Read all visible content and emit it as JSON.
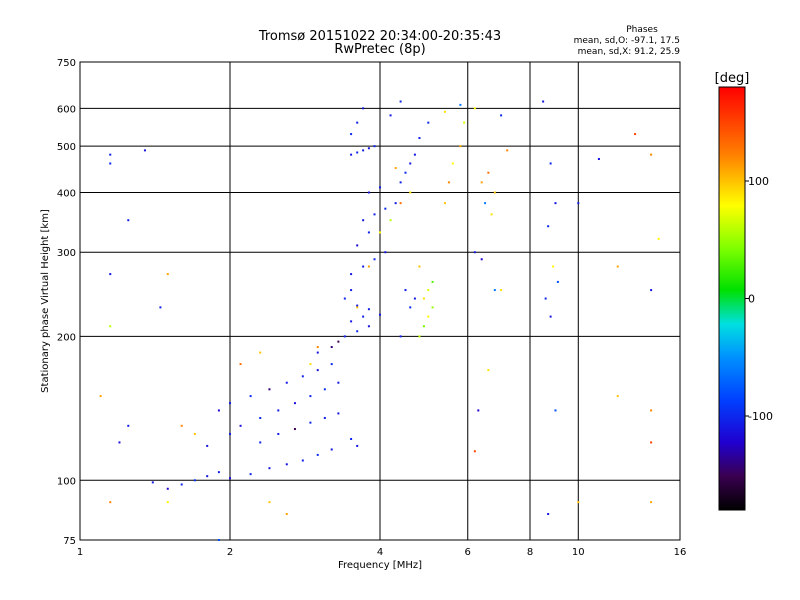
{
  "chart_data": {
    "type": "scatter",
    "title": "Tromsø 20151022 20:34:00-20:35:43",
    "subtitle": "RwPretec (8p)",
    "xlabel": "Frequency [MHz]",
    "ylabel": "Stationary phase Virtual Height [km]",
    "xscale": "log",
    "yscale": "log",
    "xlim": [
      1,
      16
    ],
    "ylim": [
      75,
      750
    ],
    "x_ticks": [
      1,
      2,
      4,
      6,
      8,
      10,
      16
    ],
    "x_tick_labels": [
      "1",
      "2",
      "4",
      "6",
      "8",
      "10",
      "16"
    ],
    "y_ticks": [
      75,
      100,
      200,
      300,
      400,
      500,
      600,
      750
    ],
    "y_tick_labels": [
      "75",
      "100",
      "200",
      "300",
      "400",
      "500",
      "600",
      "750"
    ],
    "grid": true,
    "phases": {
      "heading": "Phases",
      "line_o": "mean, sd,O:  -97.1, 17.5",
      "line_x": "mean, sd,X:  91.2, 25.9"
    },
    "colorbar": {
      "label": "[deg]",
      "range": [
        -180,
        180
      ],
      "ticks": [
        100,
        0,
        -100
      ],
      "tick_labels": [
        "100",
        "0",
        "-100"
      ]
    },
    "series": [
      {
        "points": [
          [
            1.8,
            102,
            -110
          ],
          [
            1.9,
            104,
            -105
          ],
          [
            2.0,
            101,
            -115
          ],
          [
            2.2,
            103,
            -100
          ],
          [
            2.4,
            106,
            -108
          ],
          [
            2.6,
            108,
            -112
          ],
          [
            2.8,
            110,
            -104
          ],
          [
            3.0,
            113,
            -98
          ],
          [
            3.2,
            116,
            -110
          ],
          [
            1.6,
            98,
            -102
          ],
          [
            1.7,
            100,
            -95
          ],
          [
            1.5,
            96,
            -120
          ],
          [
            1.4,
            99,
            -108
          ],
          [
            1.8,
            118,
            -110
          ],
          [
            2.0,
            125,
            -105
          ],
          [
            2.1,
            130,
            -112
          ],
          [
            2.3,
            135,
            -100
          ],
          [
            2.5,
            140,
            -108
          ],
          [
            2.7,
            145,
            -115
          ],
          [
            2.9,
            150,
            -102
          ],
          [
            3.1,
            155,
            -96
          ],
          [
            3.3,
            160,
            -110
          ],
          [
            1.9,
            140,
            -118
          ],
          [
            2.0,
            145,
            -105
          ],
          [
            2.2,
            150,
            -100
          ],
          [
            2.4,
            155,
            -140
          ],
          [
            2.6,
            160,
            -108
          ],
          [
            2.8,
            165,
            -104
          ],
          [
            3.0,
            170,
            -112
          ],
          [
            3.2,
            175,
            -100
          ],
          [
            2.3,
            120,
            -102
          ],
          [
            2.5,
            125,
            -106
          ],
          [
            2.7,
            128,
            -150
          ],
          [
            2.9,
            132,
            -100
          ],
          [
            3.1,
            135,
            -104
          ],
          [
            3.3,
            138,
            -108
          ],
          [
            3.5,
            122,
            -100
          ],
          [
            3.6,
            118,
            -110
          ],
          [
            3.0,
            185,
            -110
          ],
          [
            3.2,
            190,
            -140
          ],
          [
            3.3,
            195,
            -150
          ],
          [
            3.4,
            200,
            -105
          ],
          [
            3.6,
            205,
            -100
          ],
          [
            3.8,
            210,
            -112
          ],
          [
            3.5,
            215,
            -108
          ],
          [
            3.7,
            220,
            -104
          ],
          [
            3.4,
            240,
            -100
          ],
          [
            3.6,
            232,
            -110
          ],
          [
            3.8,
            228,
            -105
          ],
          [
            4.0,
            222,
            -108
          ],
          [
            3.5,
            250,
            -104
          ],
          [
            3.5,
            270,
            -110
          ],
          [
            3.7,
            280,
            -105
          ],
          [
            3.9,
            290,
            -100
          ],
          [
            4.1,
            300,
            -108
          ],
          [
            3.6,
            310,
            -115
          ],
          [
            3.8,
            330,
            -102
          ],
          [
            3.7,
            350,
            -110
          ],
          [
            3.9,
            360,
            -104
          ],
          [
            4.1,
            370,
            -100
          ],
          [
            4.3,
            380,
            -108
          ],
          [
            3.8,
            400,
            -112
          ],
          [
            4.0,
            410,
            -106
          ],
          [
            3.5,
            480,
            -108
          ],
          [
            3.6,
            485,
            -100
          ],
          [
            3.7,
            490,
            -105
          ],
          [
            3.8,
            495,
            -110
          ],
          [
            3.9,
            500,
            -102
          ],
          [
            4.4,
            420,
            -104
          ],
          [
            4.5,
            440,
            -100
          ],
          [
            4.6,
            460,
            -108
          ],
          [
            4.7,
            480,
            -112
          ],
          [
            4.8,
            520,
            -104
          ],
          [
            5.0,
            560,
            -100
          ],
          [
            4.4,
            200,
            -104
          ],
          [
            4.6,
            230,
            -100
          ],
          [
            4.7,
            240,
            -108
          ],
          [
            4.5,
            250,
            -104
          ],
          [
            4.8,
            200,
            60
          ],
          [
            4.9,
            210,
            40
          ],
          [
            5.0,
            220,
            80
          ],
          [
            5.1,
            230,
            50
          ],
          [
            4.9,
            240,
            90
          ],
          [
            5.0,
            250,
            70
          ],
          [
            5.1,
            260,
            30
          ],
          [
            4.8,
            280,
            100
          ],
          [
            5.4,
            380,
            100
          ],
          [
            5.5,
            420,
            120
          ],
          [
            5.6,
            460,
            80
          ],
          [
            5.8,
            500,
            110
          ],
          [
            5.9,
            560,
            70
          ],
          [
            6.4,
            420,
            110
          ],
          [
            6.6,
            440,
            130
          ],
          [
            6.8,
            400,
            100
          ],
          [
            6.5,
            380,
            -60
          ],
          [
            6.7,
            360,
            90
          ],
          [
            6.2,
            300,
            -110
          ],
          [
            6.4,
            290,
            -120
          ],
          [
            6.8,
            250,
            -60
          ],
          [
            7.0,
            250,
            90
          ],
          [
            8.5,
            620,
            -110
          ],
          [
            8.8,
            460,
            -100
          ],
          [
            9.0,
            380,
            -110
          ],
          [
            8.7,
            340,
            -100
          ],
          [
            8.9,
            280,
            80
          ],
          [
            9.1,
            260,
            -80
          ],
          [
            8.6,
            240,
            -100
          ],
          [
            8.8,
            220,
            -110
          ],
          [
            10.0,
            380,
            -104
          ],
          [
            11.0,
            470,
            -112
          ],
          [
            12.0,
            280,
            110
          ],
          [
            13.0,
            530,
            150
          ],
          [
            14.0,
            480,
            120
          ],
          [
            14.5,
            320,
            80
          ],
          [
            14.0,
            250,
            -110
          ],
          [
            1.15,
            480,
            -104
          ],
          [
            1.15,
            460,
            -100
          ],
          [
            1.35,
            490,
            -110
          ],
          [
            1.25,
            350,
            -104
          ],
          [
            1.15,
            270,
            -108
          ],
          [
            1.5,
            270,
            110
          ],
          [
            1.45,
            230,
            -104
          ],
          [
            1.15,
            210,
            60
          ],
          [
            1.1,
            150,
            110
          ],
          [
            1.2,
            120,
            -112
          ],
          [
            1.25,
            130,
            -104
          ],
          [
            1.15,
            90,
            120
          ],
          [
            7.0,
            580,
            -100
          ],
          [
            6.2,
            600,
            80
          ],
          [
            5.8,
            610,
            -60
          ],
          [
            5.4,
            590,
            90
          ],
          [
            7.2,
            490,
            120
          ],
          [
            6.6,
            170,
            90
          ],
          [
            6.3,
            140,
            -120
          ],
          [
            6.2,
            115,
            150
          ],
          [
            8.7,
            85,
            -110
          ],
          [
            10.0,
            90,
            100
          ],
          [
            14.0,
            90,
            110
          ],
          [
            14.0,
            120,
            150
          ],
          [
            14.0,
            140,
            120
          ],
          [
            9.0,
            140,
            -80
          ],
          [
            12.0,
            150,
            100
          ],
          [
            3.0,
            190,
            120
          ],
          [
            2.9,
            175,
            90
          ],
          [
            3.6,
            230,
            100
          ],
          [
            3.8,
            280,
            110
          ],
          [
            4.0,
            330,
            80
          ],
          [
            4.2,
            350,
            60
          ],
          [
            4.4,
            380,
            130
          ],
          [
            4.6,
            400,
            90
          ],
          [
            4.3,
            450,
            110
          ],
          [
            3.5,
            530,
            -100
          ],
          [
            3.6,
            560,
            -104
          ],
          [
            3.7,
            600,
            -110
          ],
          [
            4.2,
            580,
            -108
          ],
          [
            4.4,
            620,
            -100
          ],
          [
            2.4,
            90,
            100
          ],
          [
            2.6,
            85,
            110
          ],
          [
            1.5,
            90,
            80
          ],
          [
            1.9,
            75,
            -80
          ],
          [
            1.6,
            130,
            120
          ],
          [
            1.7,
            125,
            100
          ],
          [
            2.1,
            175,
            130
          ],
          [
            2.3,
            185,
            100
          ]
        ]
      }
    ]
  }
}
